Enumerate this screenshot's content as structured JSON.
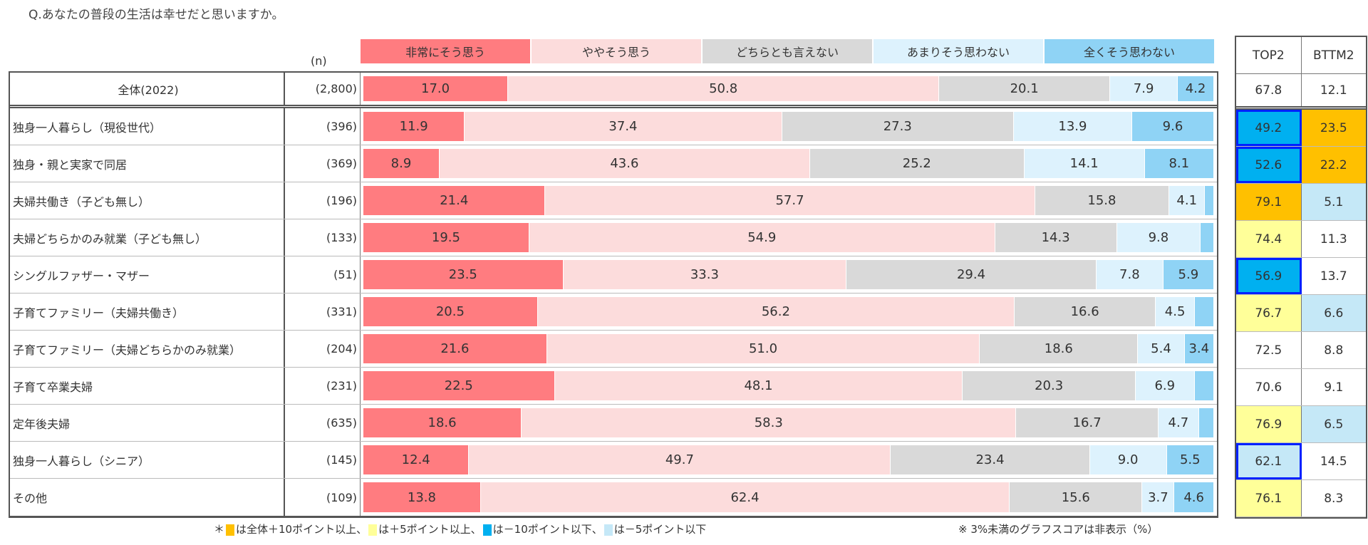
{
  "title": "Q.あなたの普段の生活は幸せだと思いますか。",
  "n_header": "(n)",
  "footnote_left": {
    "prefix": "＊",
    "items": [
      {
        "color": "#ffc000",
        "text": "は全体＋10ポイント以上、"
      },
      {
        "color": "#ffff99",
        "text": "は＋5ポイント以上、"
      },
      {
        "color": "#00b0f0",
        "text": "は－10ポイント以下、"
      },
      {
        "color": "#c5e8f7",
        "text": "は－5ポイント以下"
      }
    ]
  },
  "footnote_right": "※ 3%未満のグラフスコアは非表示（%）",
  "highlight_colors": {
    "plus10": "#ffc000",
    "plus5": "#ffff99",
    "minus10": "#00b0f0",
    "minus5": "#c5e8f7",
    "border": "#0020ff"
  },
  "chart_data": {
    "type": "bar",
    "orientation": "horizontal-stacked-100",
    "unit": "%",
    "label_threshold": 3,
    "series": [
      {
        "name": "非常にそう思う",
        "color": "#ff7c80"
      },
      {
        "name": "ややそう思う",
        "color": "#fcdcdc"
      },
      {
        "name": "どちらとも言えない",
        "color": "#d9d9d9"
      },
      {
        "name": "あまりそう思わない",
        "color": "#ddf2fd"
      },
      {
        "name": "全くそう思わない",
        "color": "#8fd3f5"
      }
    ],
    "summary_headers": [
      "TOP2",
      "BTTM2"
    ],
    "rows": [
      {
        "label": "全体(2022)",
        "n": "(2,800)",
        "values": [
          17.0,
          50.8,
          20.1,
          7.9,
          4.2
        ],
        "top2": "67.8",
        "bttm2": "12.1",
        "top2_hl": null,
        "bttm2_hl": null,
        "total": true
      },
      {
        "label": "独身一人暮らし（現役世代）",
        "n": "(396)",
        "values": [
          11.9,
          37.4,
          27.3,
          13.9,
          9.6
        ],
        "top2": "49.2",
        "bttm2": "23.5",
        "top2_hl": "minus10",
        "bttm2_hl": "plus10",
        "top2_border": true
      },
      {
        "label": "独身・親と実家で同居",
        "n": "(369)",
        "values": [
          8.9,
          43.6,
          25.2,
          14.1,
          8.1
        ],
        "top2": "52.6",
        "bttm2": "22.2",
        "top2_hl": "minus10",
        "bttm2_hl": "plus10",
        "top2_border": true
      },
      {
        "label": "夫婦共働き（子ども無し）",
        "n": "(196)",
        "values": [
          21.4,
          57.7,
          15.8,
          4.1,
          1.0
        ],
        "top2": "79.1",
        "bttm2": "5.1",
        "top2_hl": "plus10",
        "bttm2_hl": "minus5"
      },
      {
        "label": "夫婦どちらかのみ就業（子ども無し）",
        "n": "(133)",
        "values": [
          19.5,
          54.9,
          14.3,
          9.8,
          1.5
        ],
        "top2": "74.4",
        "bttm2": "11.3",
        "top2_hl": "plus5",
        "bttm2_hl": null
      },
      {
        "label": "シングルファザー・マザー",
        "n": "(51)",
        "values": [
          23.5,
          33.3,
          29.4,
          7.8,
          5.9
        ],
        "top2": "56.9",
        "bttm2": "13.7",
        "top2_hl": "minus10",
        "bttm2_hl": null,
        "top2_border": true
      },
      {
        "label": "子育てファミリー（夫婦共働き）",
        "n": "(331)",
        "values": [
          20.5,
          56.2,
          16.6,
          4.5,
          2.2
        ],
        "top2": "76.7",
        "bttm2": "6.6",
        "top2_hl": "plus5",
        "bttm2_hl": "minus5"
      },
      {
        "label": "子育てファミリー（夫婦どちらかのみ就業）",
        "n": "(204)",
        "values": [
          21.6,
          51.0,
          18.6,
          5.4,
          3.4
        ],
        "top2": "72.5",
        "bttm2": "8.8",
        "top2_hl": null,
        "bttm2_hl": null
      },
      {
        "label": "子育て卒業夫婦",
        "n": "(231)",
        "values": [
          22.5,
          48.1,
          20.3,
          6.9,
          2.2
        ],
        "top2": "70.6",
        "bttm2": "9.1",
        "top2_hl": null,
        "bttm2_hl": null
      },
      {
        "label": "定年後夫婦",
        "n": "(635)",
        "values": [
          18.6,
          58.3,
          16.7,
          4.7,
          1.7
        ],
        "top2": "76.9",
        "bttm2": "6.5",
        "top2_hl": "plus5",
        "bttm2_hl": "minus5"
      },
      {
        "label": "独身一人暮らし（シニア）",
        "n": "(145)",
        "values": [
          12.4,
          49.7,
          23.4,
          9.0,
          5.5
        ],
        "top2": "62.1",
        "bttm2": "14.5",
        "top2_hl": "minus5",
        "bttm2_hl": null,
        "top2_border": true
      },
      {
        "label": "その他",
        "n": "(109)",
        "values": [
          13.8,
          62.4,
          15.6,
          3.7,
          4.6
        ],
        "top2": "76.1",
        "bttm2": "8.3",
        "top2_hl": "plus5",
        "bttm2_hl": null
      }
    ]
  }
}
